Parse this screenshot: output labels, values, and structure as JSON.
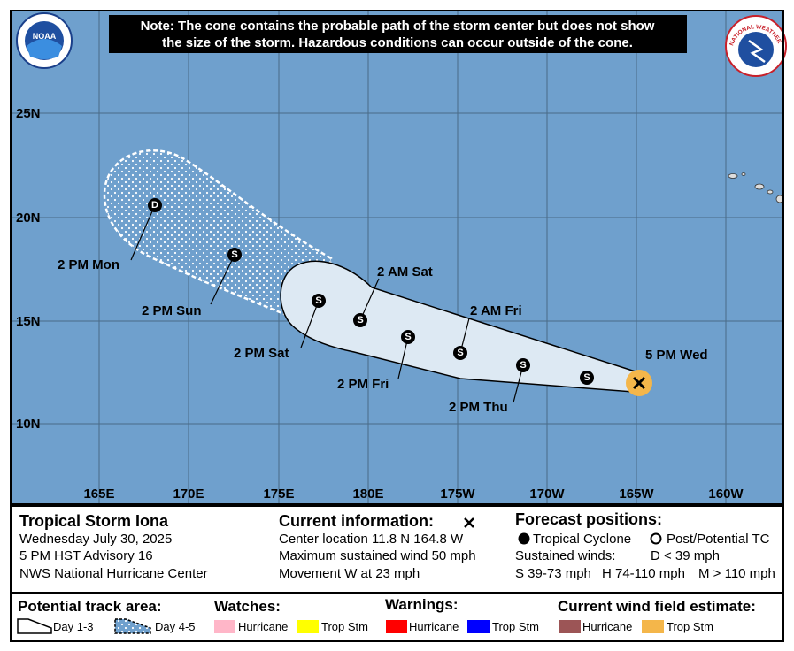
{
  "header": {
    "note": [
      "Note: The cone contains the probable path of the storm center but does not show",
      "the size of the storm. Hazardous conditions can occur outside of the cone."
    ],
    "noaa_logo": "NOAA",
    "nws_logo": "NATIONAL WEATHER SERVICE"
  },
  "map": {
    "latitude_labels": [
      "25N",
      "20N",
      "15N",
      "10N"
    ],
    "longitude_labels": [
      "165E",
      "170E",
      "175E",
      "180E",
      "175W",
      "170W",
      "165W",
      "160W"
    ],
    "forecast_labels": [
      "5 PM Wed",
      "2 PM Thu",
      "2 AM Fri",
      "2 PM Fri",
      "2 AM Sat",
      "2 PM Sat",
      "2 PM Sun",
      "2 PM Mon"
    ],
    "forecast_symbols": [
      "S",
      "S",
      "S",
      "S",
      "S",
      "S",
      "S",
      "D"
    ]
  },
  "storm": {
    "name": "Tropical Storm Iona",
    "date": "Wednesday July 30, 2025",
    "advisory": "5 PM HST Advisory 16",
    "center": "NWS National Hurricane Center"
  },
  "current_information": {
    "title": "Current information:",
    "lines": [
      "Center location 11.8 N 164.8 W",
      "Maximum sustained wind 50 mph",
      "Movement W at 23 mph"
    ]
  },
  "forecast_positions": {
    "title": "Forecast positions:",
    "tropical_cyclone": "Tropical Cyclone",
    "post_tc": "Post/Potential TC",
    "sustained_winds": "Sustained winds:",
    "depression": "D < 39 mph",
    "storm": "S 39-73 mph",
    "hurricane": "H 74-110 mph",
    "major": "M > 110 mph"
  },
  "legend": {
    "track_title": "Potential track area:",
    "day_1_3": "Day 1-3",
    "day_4_5": "Day 4-5",
    "watches_title": "Watches:",
    "watch_hurricane": "Hurricane",
    "watch_trop_stm": "Trop Stm",
    "warnings_title": "Warnings:",
    "warning_hurricane": "Hurricane",
    "warning_trop_stm": "Trop Stm",
    "wind_title": "Current wind field estimate:",
    "wind_hurricane": "Hurricane",
    "wind_trop_stm": "Trop Stm"
  }
}
